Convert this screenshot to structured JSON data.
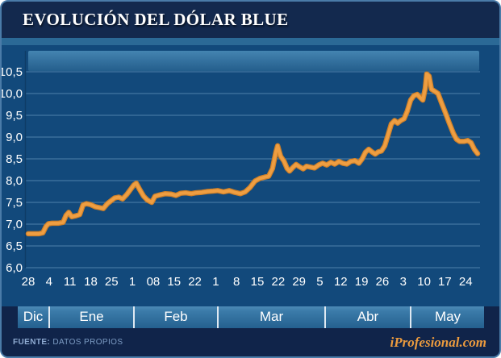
{
  "header": {
    "title": "EVOLUCIÓN DEL DÓLAR BLUE"
  },
  "footer": {
    "source_label": "FUENTE:",
    "source_value": "DATOS PROPIOS",
    "brand": "iProfesional.com"
  },
  "colors": {
    "panel_border": "#4A7BA8",
    "title_bg": "#13294E",
    "divider": "#2B6996",
    "chart_bg": "#12497B",
    "gridline": "#5C8FB8",
    "axis_line": "#0E3C66",
    "band_top": "#4484B1",
    "band_bottom": "#245E8C",
    "line_dark": "#D08028",
    "line_light": "#EE9E42",
    "text": "#FFFFFF",
    "footer_bg": "#10244A",
    "source_text": "#7D9CC4",
    "brand_text": "#EC9B3E"
  },
  "chart_data": {
    "type": "line",
    "title": "EVOLUCIÓN DEL DÓLAR BLUE",
    "xlabel": "",
    "ylabel": "",
    "ylim": [
      6.0,
      10.5
    ],
    "y_tick_step": 0.5,
    "grid": true,
    "legend": false,
    "y_tick_labels": [
      "10,5",
      "10,0",
      "9,5",
      "9,0",
      "8,5",
      "8,0",
      "7,5",
      "7,0",
      "6,5",
      "6,0"
    ],
    "x_tick_labels": [
      "28",
      "4",
      "11",
      "18",
      "25",
      "1",
      "08",
      "15",
      "22",
      "1",
      "8",
      "15",
      "22",
      "29",
      "5",
      "12",
      "19",
      "26",
      "3",
      "10",
      "17",
      "24"
    ],
    "x_tick_interval_days": 7,
    "months": [
      "Dic",
      "Ene",
      "Feb",
      "Mar",
      "Abr",
      "May"
    ],
    "series": [
      {
        "name": "Dólar blue",
        "points": [
          [
            0,
            6.78
          ],
          [
            2,
            6.78
          ],
          [
            3.5,
            6.78
          ],
          [
            4.9,
            6.8
          ],
          [
            6,
            6.95
          ],
          [
            6.8,
            7.01
          ],
          [
            8,
            7.02
          ],
          [
            10,
            7.02
          ],
          [
            11.7,
            7.04
          ],
          [
            12.7,
            7.2
          ],
          [
            13.6,
            7.27
          ],
          [
            14.6,
            7.17
          ],
          [
            16,
            7.19
          ],
          [
            17.3,
            7.22
          ],
          [
            18.4,
            7.44
          ],
          [
            19.5,
            7.47
          ],
          [
            20.9,
            7.45
          ],
          [
            22.5,
            7.4
          ],
          [
            23.9,
            7.38
          ],
          [
            25.2,
            7.36
          ],
          [
            26.6,
            7.47
          ],
          [
            27.9,
            7.54
          ],
          [
            29,
            7.6
          ],
          [
            30.4,
            7.62
          ],
          [
            31.7,
            7.58
          ],
          [
            33.1,
            7.68
          ],
          [
            34.4,
            7.8
          ],
          [
            35.5,
            7.9
          ],
          [
            36.3,
            7.94
          ],
          [
            37.4,
            7.8
          ],
          [
            38.8,
            7.64
          ],
          [
            40.1,
            7.55
          ],
          [
            41.5,
            7.5
          ],
          [
            42.6,
            7.64
          ],
          [
            44.2,
            7.67
          ],
          [
            46.1,
            7.7
          ],
          [
            48,
            7.69
          ],
          [
            49.6,
            7.66
          ],
          [
            51.2,
            7.71
          ],
          [
            52.9,
            7.72
          ],
          [
            54.8,
            7.7
          ],
          [
            56.4,
            7.72
          ],
          [
            58.3,
            7.73
          ],
          [
            60.2,
            7.75
          ],
          [
            62.1,
            7.76
          ],
          [
            63.7,
            7.77
          ],
          [
            65.6,
            7.74
          ],
          [
            67.5,
            7.77
          ],
          [
            69.4,
            7.73
          ],
          [
            71.3,
            7.7
          ],
          [
            72.9,
            7.74
          ],
          [
            74.5,
            7.84
          ],
          [
            76.2,
            7.99
          ],
          [
            77.8,
            8.05
          ],
          [
            79.4,
            8.08
          ],
          [
            80.8,
            8.1
          ],
          [
            82.1,
            8.28
          ],
          [
            83.2,
            8.65
          ],
          [
            83.8,
            8.8
          ],
          [
            84.8,
            8.56
          ],
          [
            85.9,
            8.45
          ],
          [
            87,
            8.28
          ],
          [
            87.8,
            8.22
          ],
          [
            88.9,
            8.3
          ],
          [
            90,
            8.37
          ],
          [
            91.1,
            8.32
          ],
          [
            92.4,
            8.27
          ],
          [
            93.5,
            8.33
          ],
          [
            94.9,
            8.31
          ],
          [
            96.2,
            8.29
          ],
          [
            97.6,
            8.36
          ],
          [
            98.9,
            8.4
          ],
          [
            100.3,
            8.36
          ],
          [
            101.7,
            8.42
          ],
          [
            103,
            8.38
          ],
          [
            104.4,
            8.44
          ],
          [
            105.7,
            8.4
          ],
          [
            107.1,
            8.38
          ],
          [
            108.4,
            8.44
          ],
          [
            109.8,
            8.46
          ],
          [
            111.1,
            8.4
          ],
          [
            112.2,
            8.5
          ],
          [
            113.3,
            8.65
          ],
          [
            114.4,
            8.72
          ],
          [
            115.5,
            8.66
          ],
          [
            116.6,
            8.61
          ],
          [
            117.6,
            8.66
          ],
          [
            118.7,
            8.68
          ],
          [
            119.8,
            8.8
          ],
          [
            120.9,
            9.05
          ],
          [
            122,
            9.3
          ],
          [
            123.1,
            9.38
          ],
          [
            124.1,
            9.32
          ],
          [
            125.2,
            9.38
          ],
          [
            126.3,
            9.42
          ],
          [
            127.4,
            9.6
          ],
          [
            128.5,
            9.85
          ],
          [
            129.6,
            9.95
          ],
          [
            130.7,
            9.98
          ],
          [
            131.8,
            9.9
          ],
          [
            132.6,
            9.85
          ],
          [
            133.4,
            10.12
          ],
          [
            133.9,
            10.45
          ],
          [
            134.7,
            10.4
          ],
          [
            135.5,
            10.1
          ],
          [
            136.6,
            10.05
          ],
          [
            137.7,
            10.0
          ],
          [
            138.8,
            9.8
          ],
          [
            140.2,
            9.56
          ],
          [
            141.5,
            9.32
          ],
          [
            142.9,
            9.08
          ],
          [
            143.9,
            8.95
          ],
          [
            145,
            8.9
          ],
          [
            146.4,
            8.9
          ],
          [
            147.7,
            8.92
          ],
          [
            148.8,
            8.87
          ],
          [
            149.9,
            8.72
          ],
          [
            151,
            8.62
          ]
        ]
      }
    ]
  }
}
